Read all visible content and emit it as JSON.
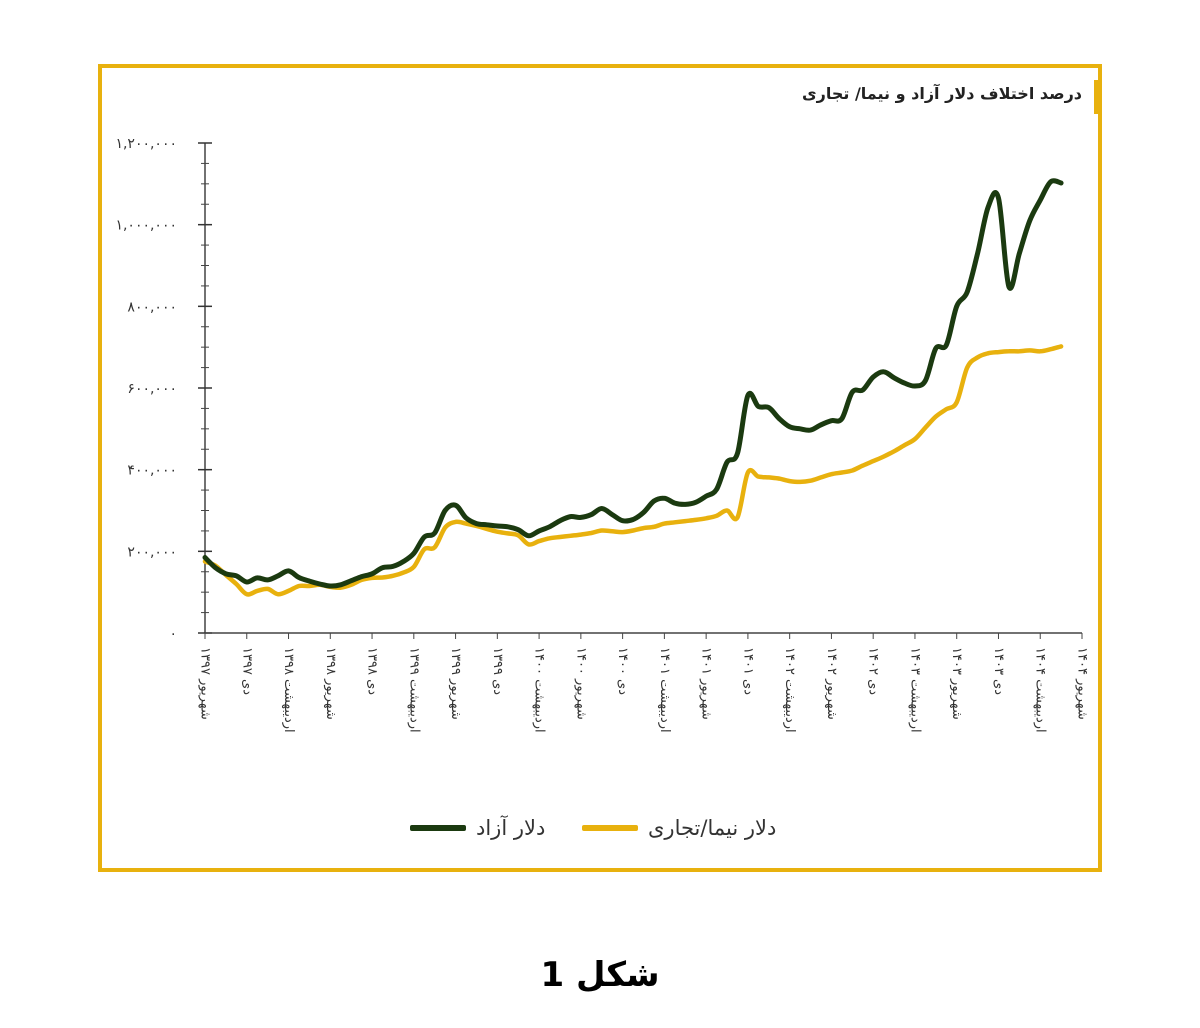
{
  "chart_data": {
    "type": "line",
    "title": "درصد اختلاف دلار آزاد و نیما/ تجاری",
    "ylim": [
      0,
      1200000
    ],
    "y_ticks": [
      "۱,۲۰۰,۰۰۰",
      "۱,۰۰۰,۰۰۰",
      "۸۰۰,۰۰۰",
      "۶۰۰,۰۰۰",
      "۴۰۰,۰۰۰",
      "۲۰۰,۰۰۰",
      "۰"
    ],
    "y_tick_values": [
      1200000,
      1000000,
      800000,
      600000,
      400000,
      200000,
      0
    ],
    "categories": [
      "شهریور ۱۳۹۷",
      "دی ۱۳۹۷",
      "اردیبهشت ۱۳۹۸",
      "شهریور ۱۳۹۸",
      "دی ۱۳۹۸",
      "اردیبهشت ۱۳۹۹",
      "شهریور ۱۳۹۹",
      "دی ۱۳۹۹",
      "اردیبهشت ۱۴۰۰",
      "شهریور ۱۴۰۰",
      "دی ۱۴۰۰",
      "اردیبهشت ۱۴۰۱",
      "شهریور ۱۴۰۱",
      "دی ۱۴۰۱",
      "اردیبهشت ۱۴۰۲",
      "شهریور ۱۴۰۲",
      "دی ۱۴۰۲",
      "اردیبهشت ۱۴۰۳",
      "شهریور ۱۴۰۳",
      "دی ۱۴۰۳",
      "اردیبهشت ۱۴۰۴",
      "شهریور ۱۴۰۴"
    ],
    "series": [
      {
        "name": "دلار آزاد",
        "color": "#1b3a10",
        "values": [
          [
            0,
            185000
          ],
          [
            0.25,
            160000
          ],
          [
            0.5,
            145000
          ],
          [
            0.75,
            140000
          ],
          [
            1,
            125000
          ],
          [
            1.25,
            135000
          ],
          [
            1.5,
            130000
          ],
          [
            1.75,
            140000
          ],
          [
            2,
            152000
          ],
          [
            2.25,
            136000
          ],
          [
            2.5,
            127000
          ],
          [
            2.75,
            120000
          ],
          [
            3,
            115000
          ],
          [
            3.25,
            118000
          ],
          [
            3.5,
            128000
          ],
          [
            3.75,
            138000
          ],
          [
            4,
            145000
          ],
          [
            4.25,
            160000
          ],
          [
            4.5,
            163000
          ],
          [
            4.75,
            175000
          ],
          [
            5,
            195000
          ],
          [
            5.25,
            235000
          ],
          [
            5.5,
            245000
          ],
          [
            5.75,
            300000
          ],
          [
            6,
            313000
          ],
          [
            6.25,
            282000
          ],
          [
            6.5,
            268000
          ],
          [
            6.75,
            265000
          ],
          [
            7,
            262000
          ],
          [
            7.25,
            260000
          ],
          [
            7.5,
            253000
          ],
          [
            7.75,
            238000
          ],
          [
            8,
            250000
          ],
          [
            8.25,
            260000
          ],
          [
            8.5,
            275000
          ],
          [
            8.75,
            285000
          ],
          [
            9,
            283000
          ],
          [
            9.25,
            290000
          ],
          [
            9.5,
            305000
          ],
          [
            9.75,
            290000
          ],
          [
            10,
            275000
          ],
          [
            10.25,
            278000
          ],
          [
            10.5,
            295000
          ],
          [
            10.75,
            323000
          ],
          [
            11,
            330000
          ],
          [
            11.25,
            318000
          ],
          [
            11.5,
            315000
          ],
          [
            11.75,
            320000
          ],
          [
            12,
            335000
          ],
          [
            12.25,
            352000
          ],
          [
            12.5,
            418000
          ],
          [
            12.75,
            440000
          ],
          [
            13,
            582000
          ],
          [
            13.25,
            555000
          ],
          [
            13.5,
            552000
          ],
          [
            13.75,
            525000
          ],
          [
            14,
            505000
          ],
          [
            14.25,
            500000
          ],
          [
            14.5,
            497000
          ],
          [
            14.75,
            510000
          ],
          [
            15,
            520000
          ],
          [
            15.25,
            525000
          ],
          [
            15.5,
            590000
          ],
          [
            15.75,
            595000
          ],
          [
            16,
            627000
          ],
          [
            16.25,
            640000
          ],
          [
            16.5,
            625000
          ],
          [
            16.75,
            612000
          ],
          [
            17,
            605000
          ],
          [
            17.25,
            618000
          ],
          [
            17.5,
            697000
          ],
          [
            17.75,
            705000
          ],
          [
            18,
            800000
          ],
          [
            18.25,
            835000
          ],
          [
            18.5,
            930000
          ],
          [
            18.75,
            1042000
          ],
          [
            19,
            1065000
          ],
          [
            19.25,
            848000
          ],
          [
            19.5,
            930000
          ],
          [
            19.75,
            1010000
          ],
          [
            20,
            1060000
          ],
          [
            20.25,
            1105000
          ],
          [
            20.5,
            1102000
          ]
        ]
      },
      {
        "name": "دلار نیما/تجاری",
        "color": "#e8b10e",
        "values": [
          [
            0,
            175000
          ],
          [
            0.25,
            165000
          ],
          [
            0.5,
            142000
          ],
          [
            0.75,
            120000
          ],
          [
            1,
            95000
          ],
          [
            1.25,
            103000
          ],
          [
            1.5,
            108000
          ],
          [
            1.75,
            95000
          ],
          [
            2,
            103000
          ],
          [
            2.25,
            115000
          ],
          [
            2.5,
            115000
          ],
          [
            2.75,
            118000
          ],
          [
            3,
            113000
          ],
          [
            3.25,
            111000
          ],
          [
            3.5,
            118000
          ],
          [
            3.75,
            130000
          ],
          [
            4,
            135000
          ],
          [
            4.25,
            136000
          ],
          [
            4.5,
            140000
          ],
          [
            4.75,
            148000
          ],
          [
            5,
            162000
          ],
          [
            5.25,
            205000
          ],
          [
            5.5,
            210000
          ],
          [
            5.75,
            258000
          ],
          [
            6,
            272000
          ],
          [
            6.25,
            268000
          ],
          [
            6.5,
            262000
          ],
          [
            6.75,
            255000
          ],
          [
            7,
            248000
          ],
          [
            7.25,
            244000
          ],
          [
            7.5,
            239000
          ],
          [
            7.75,
            217000
          ],
          [
            8,
            225000
          ],
          [
            8.25,
            232000
          ],
          [
            8.5,
            235000
          ],
          [
            8.75,
            238000
          ],
          [
            9,
            241000
          ],
          [
            9.25,
            245000
          ],
          [
            9.5,
            251000
          ],
          [
            9.75,
            249000
          ],
          [
            10,
            247000
          ],
          [
            10.25,
            251000
          ],
          [
            10.5,
            257000
          ],
          [
            10.75,
            260000
          ],
          [
            11,
            268000
          ],
          [
            11.25,
            271000
          ],
          [
            11.5,
            274000
          ],
          [
            11.75,
            277000
          ],
          [
            12,
            281000
          ],
          [
            12.25,
            287000
          ],
          [
            12.5,
            300000
          ],
          [
            12.75,
            283000
          ],
          [
            13,
            393000
          ],
          [
            13.25,
            383000
          ],
          [
            13.5,
            381000
          ],
          [
            13.75,
            378000
          ],
          [
            14,
            372000
          ],
          [
            14.25,
            370000
          ],
          [
            14.5,
            373000
          ],
          [
            14.75,
            381000
          ],
          [
            15,
            389000
          ],
          [
            15.25,
            393000
          ],
          [
            15.5,
            398000
          ],
          [
            15.75,
            410000
          ],
          [
            16,
            421000
          ],
          [
            16.25,
            432000
          ],
          [
            16.5,
            445000
          ],
          [
            16.75,
            460000
          ],
          [
            17,
            475000
          ],
          [
            17.25,
            503000
          ],
          [
            17.5,
            530000
          ],
          [
            17.75,
            548000
          ],
          [
            18,
            565000
          ],
          [
            18.25,
            650000
          ],
          [
            18.5,
            675000
          ],
          [
            18.75,
            685000
          ],
          [
            19,
            688000
          ],
          [
            19.25,
            690000
          ],
          [
            19.5,
            690000
          ],
          [
            19.75,
            692000
          ],
          [
            20,
            690000
          ],
          [
            20.25,
            695000
          ],
          [
            20.5,
            702000
          ]
        ]
      }
    ],
    "legend_position": "bottom",
    "grid": false
  },
  "caption": "شکل 1"
}
